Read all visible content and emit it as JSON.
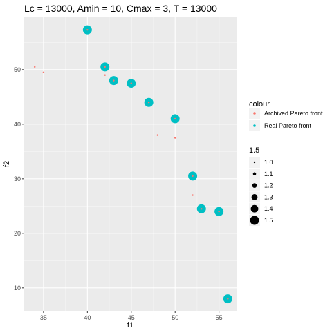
{
  "chart_data": {
    "type": "scatter",
    "title": "Lc = 13000, Amin = 10, Cmax = 3, T = 13000",
    "xlabel": "f1",
    "ylabel": "f2",
    "xlim": [
      32.8,
      57.0
    ],
    "ylim": [
      5.8,
      59.6
    ],
    "xticks": [
      35,
      40,
      45,
      50,
      55
    ],
    "yticks": [
      10,
      20,
      30,
      40,
      50
    ],
    "grid": true,
    "background": "#ebebeb",
    "legend": {
      "position": "right",
      "colour_title": "colour",
      "size_title": "1.5",
      "colour_entries": [
        {
          "label": "Archived Pareto front",
          "color": "#f8766d"
        },
        {
          "label": "Real Pareto front",
          "color": "#00bfc4"
        }
      ],
      "size_entries": [
        "1.0",
        "1.1",
        "1.2",
        "1.3",
        "1.4",
        "1.5"
      ]
    },
    "series": [
      {
        "name": "Real Pareto front",
        "color": "#00bfc4",
        "size": 1.5,
        "points": [
          {
            "x": 40,
            "y": 57.3
          },
          {
            "x": 42,
            "y": 50.5
          },
          {
            "x": 43,
            "y": 48.0
          },
          {
            "x": 45,
            "y": 47.5
          },
          {
            "x": 47,
            "y": 44.0
          },
          {
            "x": 50,
            "y": 41.0
          },
          {
            "x": 52,
            "y": 30.5
          },
          {
            "x": 53,
            "y": 24.5
          },
          {
            "x": 55,
            "y": 24.0
          },
          {
            "x": 56,
            "y": 8.0
          }
        ]
      },
      {
        "name": "Archived Pareto front",
        "color": "#f8766d",
        "size": 1.0,
        "points": [
          {
            "x": 34,
            "y": 50.5
          },
          {
            "x": 35,
            "y": 49.5
          },
          {
            "x": 40,
            "y": 57.3
          },
          {
            "x": 42,
            "y": 50.5
          },
          {
            "x": 42,
            "y": 49.0
          },
          {
            "x": 43,
            "y": 48.0
          },
          {
            "x": 45,
            "y": 47.5
          },
          {
            "x": 47,
            "y": 44.0
          },
          {
            "x": 48,
            "y": 38.0
          },
          {
            "x": 50,
            "y": 41.0
          },
          {
            "x": 50,
            "y": 37.5
          },
          {
            "x": 52,
            "y": 30.5
          },
          {
            "x": 52,
            "y": 27.0
          },
          {
            "x": 53,
            "y": 24.5
          },
          {
            "x": 55,
            "y": 24.0
          },
          {
            "x": 56,
            "y": 8.0
          }
        ]
      }
    ]
  }
}
